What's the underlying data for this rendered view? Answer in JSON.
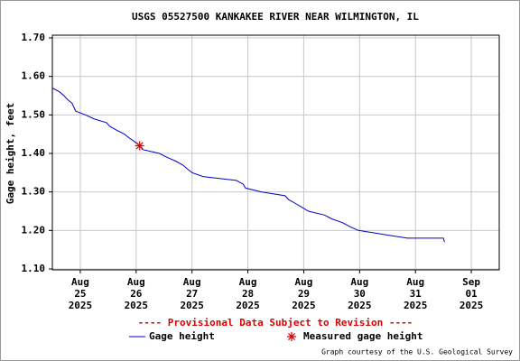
{
  "chart_data": {
    "type": "line",
    "title": "USGS 05527500 KANKAKEE RIVER NEAR WILMINGTON, IL",
    "ylabel": "Gage height, feet",
    "annotation": "---- Provisional Data Subject to Revision ----",
    "annotation_color": "#dd0000",
    "credit": "Graph courtesy of the U.S. Geological Survey",
    "grid": true,
    "xlim": [
      "2025-08-24T12:00",
      "2025-09-01T12:00"
    ],
    "xticks": [
      {
        "value": "2025-08-25",
        "label": "Aug 25 2025"
      },
      {
        "value": "2025-08-26",
        "label": "Aug 26 2025"
      },
      {
        "value": "2025-08-27",
        "label": "Aug 27 2025"
      },
      {
        "value": "2025-08-28",
        "label": "Aug 28 2025"
      },
      {
        "value": "2025-08-29",
        "label": "Aug 29 2025"
      },
      {
        "value": "2025-08-30",
        "label": "Aug 30 2025"
      },
      {
        "value": "2025-08-31",
        "label": "Aug 31 2025"
      },
      {
        "value": "2025-09-01",
        "label": "Sep 01 2025"
      }
    ],
    "ylim": [
      1.1,
      1.7
    ],
    "yticks": [
      {
        "value": 1.1,
        "label": "1.10"
      },
      {
        "value": 1.2,
        "label": "1.20"
      },
      {
        "value": 1.3,
        "label": "1.30"
      },
      {
        "value": 1.4,
        "label": "1.40"
      },
      {
        "value": 1.5,
        "label": "1.50"
      },
      {
        "value": 1.6,
        "label": "1.60"
      },
      {
        "value": 1.7,
        "label": "1.70"
      }
    ],
    "series": [
      {
        "name": "Gage height",
        "color": "#0000cc",
        "kind": "line",
        "x": [
          "2025-08-24T12:00",
          "2025-08-24T15:00",
          "2025-08-24T17:00",
          "2025-08-24T18:30",
          "2025-08-24T20:30",
          "2025-08-24T22:00",
          "2025-08-25T02:15",
          "2025-08-25T05:45",
          "2025-08-25T11:15",
          "2025-08-25T12:45",
          "2025-08-25T15:45",
          "2025-08-25T19:00",
          "2025-08-25T21:00",
          "2025-08-25T23:30",
          "2025-08-26T01:30",
          "2025-08-26T02:45",
          "2025-08-26T10:00",
          "2025-08-26T13:15",
          "2025-08-26T17:00",
          "2025-08-26T20:00",
          "2025-08-26T22:00",
          "2025-08-27T00:00",
          "2025-08-27T04:45",
          "2025-08-27T19:00",
          "2025-08-27T22:00",
          "2025-08-27T23:00",
          "2025-08-28T06:00",
          "2025-08-28T16:00",
          "2025-08-28T17:30",
          "2025-08-28T20:30",
          "2025-08-28T23:15",
          "2025-08-29T02:00",
          "2025-08-29T09:00",
          "2025-08-29T12:00",
          "2025-08-29T16:45",
          "2025-08-29T19:45",
          "2025-08-29T23:30",
          "2025-08-30T10:00",
          "2025-08-30T20:30",
          "2025-08-31T12:00",
          "2025-08-31T12:30"
        ],
        "values": [
          1.57,
          1.56,
          1.55,
          1.54,
          1.53,
          1.51,
          1.5,
          1.49,
          1.48,
          1.47,
          1.46,
          1.45,
          1.44,
          1.43,
          1.42,
          1.41,
          1.4,
          1.39,
          1.38,
          1.37,
          1.36,
          1.35,
          1.34,
          1.33,
          1.32,
          1.31,
          1.3,
          1.29,
          1.28,
          1.27,
          1.26,
          1.25,
          1.24,
          1.23,
          1.22,
          1.21,
          1.2,
          1.19,
          1.18,
          1.18,
          1.17
        ]
      },
      {
        "name": "Measured gage height",
        "color": "#dd0000",
        "kind": "marker",
        "x": [
          "2025-08-26T01:30"
        ],
        "values": [
          1.42
        ]
      }
    ]
  }
}
